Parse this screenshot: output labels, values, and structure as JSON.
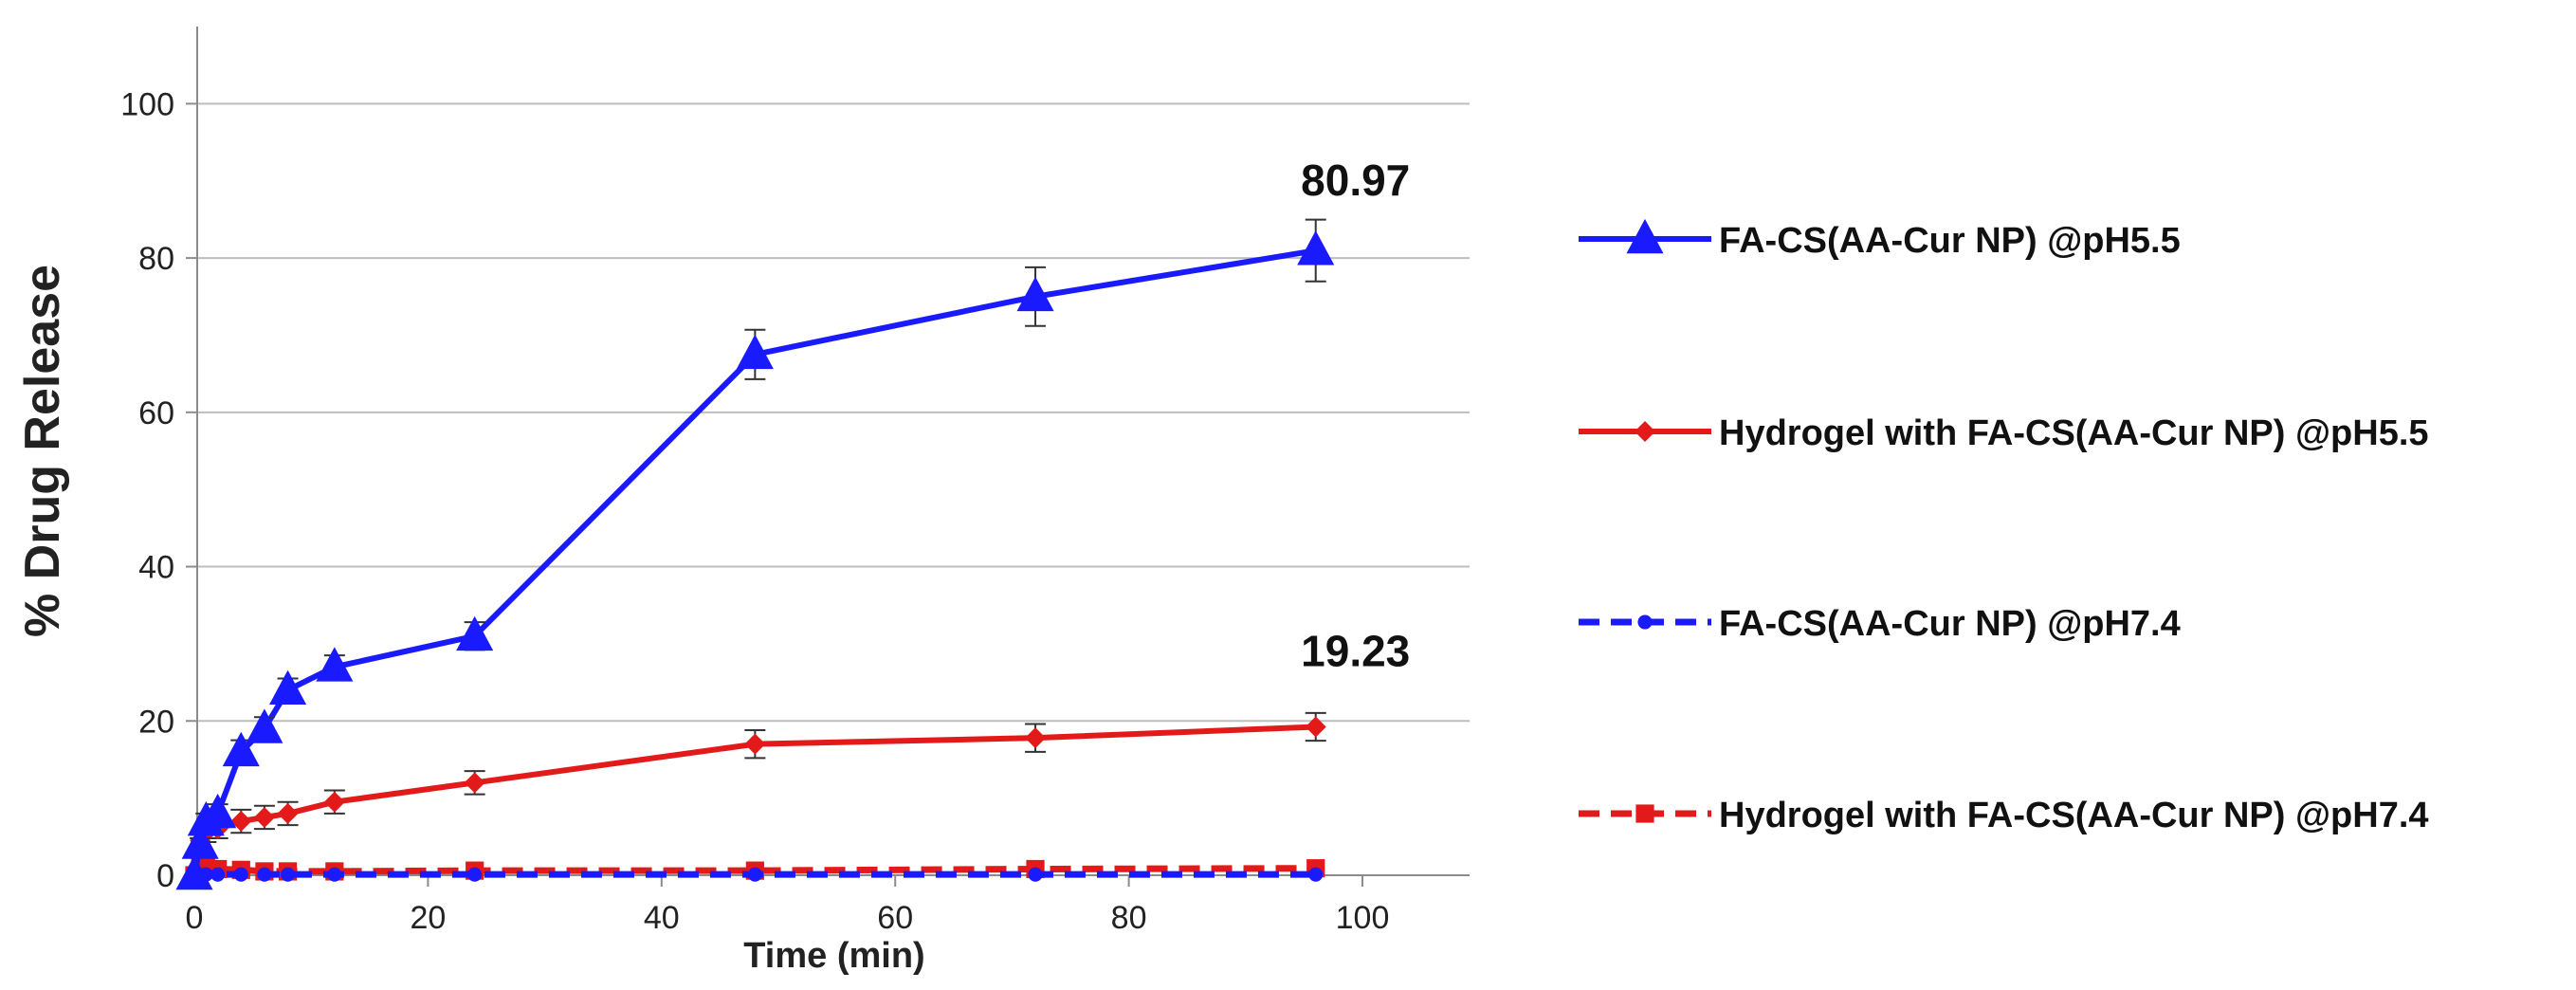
{
  "chart_data": {
    "type": "line",
    "title": "",
    "xlabel": "Time (min)",
    "ylabel": "% Drug Release",
    "xlim": [
      0,
      110
    ],
    "ylim": [
      0,
      110
    ],
    "xticks": [
      0,
      20,
      40,
      60,
      80,
      100
    ],
    "yticks": [
      0,
      20,
      40,
      60,
      80,
      100
    ],
    "grid": "horizontal",
    "legend_position": "right",
    "series": [
      {
        "name": "FA-CS(AA-Cur NP) @pH5.5",
        "color": "#1a1aff",
        "dash": "solid",
        "marker": "triangle",
        "x": [
          0,
          0.5,
          1,
          2,
          4,
          6,
          8,
          12,
          24,
          48,
          72,
          96
        ],
        "y": [
          0,
          4,
          7,
          8,
          16,
          19,
          24,
          27,
          31,
          67.5,
          75,
          80.97
        ],
        "error": [
          0,
          0.8,
          1,
          1.2,
          1.5,
          1.5,
          1.5,
          1.5,
          1.8,
          3.2,
          3.8,
          4.0
        ]
      },
      {
        "name": "Hydrogel with FA-CS(AA-Cur NP) @pH5.5",
        "color": "#e31a1a",
        "dash": "solid",
        "marker": "diamond",
        "x": [
          0,
          0.5,
          1,
          2,
          4,
          6,
          8,
          12,
          24,
          48,
          72,
          96
        ],
        "y": [
          0,
          4.5,
          5.5,
          6,
          7,
          7.5,
          8,
          9.5,
          12,
          17,
          17.8,
          19.23
        ],
        "error": [
          0,
          1,
          1.2,
          1.2,
          1.5,
          1.5,
          1.5,
          1.5,
          1.5,
          1.8,
          1.8,
          1.8
        ]
      },
      {
        "name": "FA-CS(AA-Cur NP) @pH7.4",
        "color": "#1a1aff",
        "dash": "dashed",
        "marker": "circle",
        "x": [
          0,
          0.5,
          1,
          2,
          4,
          6,
          8,
          12,
          24,
          48,
          72,
          96
        ],
        "y": [
          0,
          0,
          0.1,
          0.1,
          0.1,
          0.1,
          0.1,
          0.1,
          0.1,
          0.1,
          0.1,
          0.1
        ],
        "error": [
          0,
          0,
          0,
          0,
          0,
          0,
          0,
          0,
          0,
          0,
          0,
          0
        ]
      },
      {
        "name": "Hydrogel with FA-CS(AA-Cur NP) @pH7.4",
        "color": "#e31a1a",
        "dash": "dashed",
        "marker": "square",
        "x": [
          0,
          0.5,
          1,
          2,
          4,
          6,
          8,
          12,
          24,
          48,
          72,
          96
        ],
        "y": [
          0,
          2,
          1,
          0.8,
          0.7,
          0.5,
          0.5,
          0.5,
          0.6,
          0.6,
          0.8,
          0.9
        ],
        "error": [
          0,
          0,
          0,
          0,
          0,
          0,
          0,
          0,
          0,
          0,
          0,
          0
        ]
      }
    ],
    "annotations": [
      {
        "text": "80.97",
        "series": 0,
        "x": 96,
        "y": 80.97
      },
      {
        "text": "19.23",
        "series": 1,
        "x": 96,
        "y": 19.23
      }
    ]
  }
}
